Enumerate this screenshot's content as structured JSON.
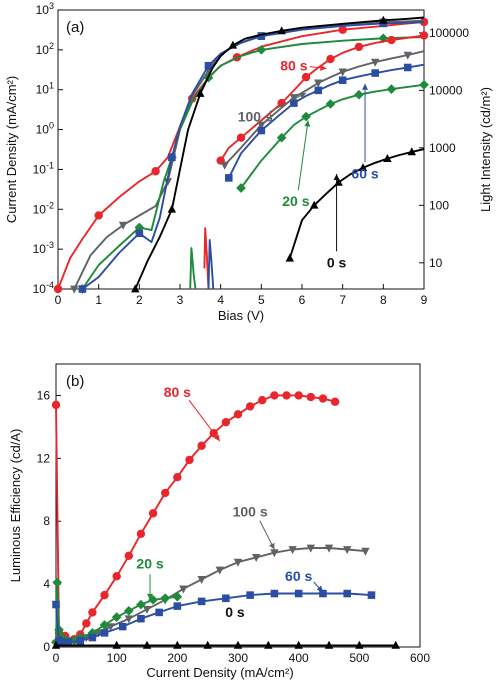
{
  "chart_data": [
    {
      "type": "line",
      "panel_label": "(a)",
      "xlabel": "Bias (V)",
      "ylabel": "Current Density (mA/cm²)",
      "y2label": "Light Intensity (cd/m²)",
      "xlim": [
        0,
        9
      ],
      "ylim": [
        0.0001,
        1000
      ],
      "y2lim": [
        3.5,
        250000
      ],
      "yscale": "log",
      "y2scale": "log",
      "xticks": [
        0,
        1,
        2,
        3,
        4,
        5,
        6,
        7,
        8,
        9
      ],
      "yticks": [
        {
          "v": 0.0001,
          "m": "10",
          "e": "-4"
        },
        {
          "v": 0.001,
          "m": "10",
          "e": "-3"
        },
        {
          "v": 0.01,
          "m": "10",
          "e": "-2"
        },
        {
          "v": 0.1,
          "m": "10",
          "e": "-1"
        },
        {
          "v": 1,
          "m": "10",
          "e": "0"
        },
        {
          "v": 10,
          "m": "10",
          "e": "1"
        },
        {
          "v": 100,
          "m": "10",
          "e": "2"
        },
        {
          "v": 1000,
          "m": "10",
          "e": "3"
        }
      ],
      "y2ticks": [
        {
          "v": 10,
          "label": "10"
        },
        {
          "v": 100,
          "label": "100"
        },
        {
          "v": 1000,
          "label": "1000"
        },
        {
          "v": 10000,
          "label": "10000"
        },
        {
          "v": 100000,
          "label": "100000"
        }
      ],
      "series": [
        {
          "color": "#e8262c",
          "marker": "circle",
          "axis": "y",
          "stride": 3,
          "x": [
            0,
            0.3,
            0.6,
            1.0,
            1.5,
            2.0,
            2.4,
            2.7,
            3.0,
            3.3,
            3.7,
            4.0,
            4.4,
            5.0,
            6.0,
            7.0,
            8.0,
            8.6,
            9.0
          ],
          "y": [
            0.0001,
            0.0006,
            0.0018,
            0.007,
            0.02,
            0.05,
            0.09,
            0.2,
            1.2,
            6,
            20,
            40,
            65,
            120,
            220,
            320,
            400,
            460,
            500
          ]
        },
        {
          "color": "#606366",
          "marker": "triangle-down",
          "axis": "y",
          "stride": 3,
          "x": [
            0.4,
            0.8,
            1.2,
            1.6,
            2.0,
            2.4,
            2.7,
            3.0,
            3.3,
            3.7,
            4.0,
            4.5,
            5.0,
            6.0,
            7.0,
            8.0,
            8.6,
            9.0
          ],
          "y": [
            0.0001,
            0.0007,
            0.002,
            0.004,
            0.007,
            0.012,
            0.05,
            1.0,
            7,
            30,
            80,
            150,
            230,
            340,
            430,
            500,
            520,
            540
          ]
        },
        {
          "color": "#1e8a3a",
          "marker": "diamond",
          "axis": "y",
          "stride": 3,
          "x": [
            0.6,
            1.0,
            1.5,
            2.0,
            2.3,
            2.6,
            2.8,
            3.0,
            3.3,
            3.7,
            4.0,
            4.5,
            5.0,
            6.0,
            7.0,
            8.0,
            9.0
          ],
          "y": [
            0.0001,
            0.0004,
            0.0012,
            0.0035,
            0.003,
            0.05,
            0.2,
            1.0,
            5,
            20,
            40,
            70,
            100,
            140,
            170,
            195,
            210
          ]
        },
        {
          "color": "#2b4ea2",
          "marker": "square",
          "axis": "y",
          "stride": 3,
          "x": [
            0.6,
            1.0,
            1.5,
            2.0,
            2.3,
            2.5,
            2.8,
            3.0,
            3.3,
            3.7,
            4.0,
            4.5,
            5.0,
            6.0,
            7.0,
            8.0,
            8.6,
            9.0
          ],
          "y": [
            0.0001,
            0.0002,
            0.0008,
            0.0025,
            0.0015,
            0.006,
            0.2,
            1.2,
            8,
            40,
            80,
            150,
            220,
            320,
            400,
            460,
            480,
            500
          ]
        },
        {
          "color": "#000000",
          "marker": "triangle-up",
          "axis": "y",
          "stride": 3,
          "x": [
            1.9,
            2.2,
            2.5,
            2.8,
            3.0,
            3.2,
            3.5,
            3.8,
            4.0,
            4.3,
            4.6,
            5.0,
            5.5,
            6.0,
            7.0,
            8.0,
            8.6,
            9.0
          ],
          "y": [
            0.0001,
            0.0005,
            0.002,
            0.01,
            0.1,
            1.0,
            8,
            35,
            70,
            130,
            190,
            240,
            300,
            360,
            450,
            550,
            600,
            650
          ]
        },
        {
          "color": "#e8262c",
          "marker": "circle",
          "axis": "y2",
          "stride": 2,
          "x": [
            4.0,
            4.2,
            4.5,
            5.0,
            5.5,
            5.8,
            6.1,
            6.4,
            6.7,
            7.0,
            7.4,
            7.8,
            8.2,
            8.6,
            9.0
          ],
          "y": [
            600,
            1000,
            1500,
            3000,
            6000,
            10000,
            17000,
            25000,
            35000,
            45000,
            57000,
            67000,
            75000,
            82000,
            90000
          ]
        },
        {
          "color": "#606366",
          "marker": "triangle-down",
          "axis": "y2",
          "stride": 2,
          "x": [
            4.1,
            4.5,
            5.0,
            5.5,
            5.8,
            6.1,
            6.4,
            6.7,
            7.0,
            7.4,
            7.8,
            8.2,
            8.6,
            9.0
          ],
          "y": [
            500,
            1000,
            2500,
            5000,
            7500,
            10000,
            13500,
            17000,
            21000,
            26000,
            31000,
            36000,
            41000,
            48000
          ]
        },
        {
          "color": "#2b4ea2",
          "marker": "square",
          "axis": "y2",
          "stride": 2,
          "x": [
            4.2,
            4.5,
            5.0,
            5.5,
            5.8,
            6.1,
            6.4,
            6.7,
            7.0,
            7.4,
            7.8,
            8.2,
            8.6,
            9.0
          ],
          "y": [
            300,
            800,
            2000,
            4000,
            6000,
            8000,
            10000,
            12500,
            15000,
            17500,
            20000,
            22500,
            25000,
            28000
          ]
        },
        {
          "color": "#1e8a3a",
          "marker": "diamond",
          "axis": "y2",
          "stride": 2,
          "x": [
            4.5,
            5.0,
            5.5,
            5.8,
            6.1,
            6.4,
            6.7,
            7.0,
            7.4,
            7.8,
            8.2,
            8.6,
            9.0
          ],
          "y": [
            200,
            600,
            1500,
            2500,
            3500,
            4500,
            5800,
            7000,
            8400,
            9500,
            10500,
            11500,
            12500
          ]
        },
        {
          "color": "#000000",
          "marker": "triangle-up",
          "axis": "y2",
          "stride": 2,
          "x": [
            5.7,
            6.0,
            6.3,
            6.6,
            6.9,
            7.2,
            7.5,
            7.8,
            8.1,
            8.4,
            8.7,
            9.0
          ],
          "y": [
            12,
            55,
            100,
            160,
            250,
            350,
            450,
            550,
            650,
            750,
            850,
            950
          ]
        },
        {
          "color": "#e8262c",
          "marker": "none",
          "axis": "y2",
          "stride": 1,
          "x": [
            3.6,
            3.62,
            3.66,
            3.7
          ],
          "y": [
            8,
            40,
            14,
            3.5
          ]
        },
        {
          "color": "#1e8a3a",
          "marker": "none",
          "axis": "y2",
          "stride": 1,
          "x": [
            3.25,
            3.28,
            3.34,
            3.38
          ],
          "y": [
            3.5,
            18,
            6,
            3.5
          ]
        },
        {
          "color": "#2b4ea2",
          "marker": "none",
          "axis": "y2",
          "stride": 1,
          "x": [
            3.7,
            3.73,
            3.78,
            3.82
          ],
          "y": [
            3.5,
            25,
            9,
            3.5
          ]
        }
      ],
      "annotations": [
        {
          "text": "80 s",
          "color": "#e8262c",
          "tx": 5.8,
          "ty": 30,
          "ax": 6.6,
          "ay": 24000
        },
        {
          "text": "100 s",
          "color": "#606366",
          "tx": 4.85,
          "ty": 1.6,
          "ax": 6.1,
          "ay": 9000
        },
        {
          "text": "60 s",
          "color": "#2b4ea2",
          "tx": 7.55,
          "ty": 0.06,
          "ax": 7.55,
          "ay": 13000
        },
        {
          "text": "20 s",
          "color": "#1e8a3a",
          "tx": 5.85,
          "ty": 0.012,
          "ax": 6.15,
          "ay": 3000
        },
        {
          "text": "0 s",
          "color": "#111111",
          "tx": 6.85,
          "ty": 0.00035,
          "ax": 6.85,
          "ay": 350
        }
      ]
    },
    {
      "type": "line",
      "panel_label": "(b)",
      "xlabel": "Current Density (mA/cm²)",
      "ylabel": "Luminous Efficiency (cd/A)",
      "xlim": [
        0,
        600
      ],
      "ylim": [
        0,
        18
      ],
      "yscale": "linear",
      "xticks": [
        0,
        100,
        200,
        300,
        400,
        500,
        600
      ],
      "yticks": [
        0,
        4,
        8,
        12,
        16
      ],
      "series": [
        {
          "color": "#e8262c",
          "marker": "circle",
          "x": [
            0,
            5,
            10,
            15,
            20,
            30,
            40,
            50,
            60,
            80,
            100,
            120,
            140,
            160,
            180,
            200,
            220,
            240,
            260,
            280,
            300,
            320,
            340,
            360,
            380,
            400,
            420,
            440,
            460
          ],
          "y": [
            15.4,
            0.9,
            0.5,
            0.7,
            0.4,
            0.5,
            0.8,
            1.5,
            2.2,
            3.3,
            4.5,
            5.8,
            7.2,
            8.5,
            9.8,
            10.8,
            11.9,
            12.8,
            13.6,
            14.3,
            14.8,
            15.3,
            15.7,
            16.0,
            16.0,
            16.0,
            15.9,
            15.8,
            15.6
          ]
        },
        {
          "color": "#606366",
          "marker": "triangle-down",
          "x": [
            0,
            10,
            30,
            50,
            70,
            90,
            120,
            150,
            180,
            210,
            240,
            270,
            300,
            330,
            360,
            390,
            420,
            450,
            480,
            510
          ],
          "y": [
            0.2,
            0.3,
            0.4,
            0.6,
            0.9,
            1.3,
            1.8,
            2.4,
            3.0,
            3.7,
            4.3,
            4.9,
            5.4,
            5.7,
            6.0,
            6.2,
            6.3,
            6.3,
            6.2,
            6.1
          ]
        },
        {
          "color": "#1e8a3a",
          "marker": "diamond",
          "x": [
            0,
            2,
            5,
            10,
            20,
            30,
            40,
            60,
            80,
            100,
            120,
            140,
            160,
            180,
            200
          ],
          "y": [
            0.3,
            4.1,
            1.1,
            0.6,
            0.4,
            0.4,
            0.6,
            0.9,
            1.4,
            1.9,
            2.3,
            2.7,
            3.0,
            3.1,
            3.2
          ]
        },
        {
          "color": "#2b4ea2",
          "marker": "square",
          "x": [
            0,
            5,
            10,
            20,
            40,
            60,
            80,
            110,
            140,
            170,
            200,
            240,
            280,
            320,
            360,
            400,
            440,
            480,
            520
          ],
          "y": [
            2.7,
            0.4,
            0.3,
            0.3,
            0.4,
            0.6,
            0.9,
            1.3,
            1.8,
            2.2,
            2.6,
            2.9,
            3.1,
            3.3,
            3.4,
            3.4,
            3.4,
            3.4,
            3.3
          ]
        },
        {
          "color": "#000000",
          "marker": "triangle-up",
          "x": [
            0,
            100,
            150,
            200,
            250,
            300,
            350,
            400,
            450,
            500,
            560
          ],
          "y": [
            0.1,
            0.1,
            0.1,
            0.1,
            0.1,
            0.1,
            0.1,
            0.1,
            0.1,
            0.1,
            0.1
          ]
        }
      ],
      "annotations": [
        {
          "text": "80 s",
          "color": "#e8262c",
          "tx": 200,
          "ty": 15.9,
          "ax": 270,
          "ay": 13.1
        },
        {
          "text": "100 s",
          "color": "#606366",
          "tx": 320,
          "ty": 8.3,
          "ax": 360,
          "ay": 6.2
        },
        {
          "text": "20 s",
          "color": "#1e8a3a",
          "tx": 155,
          "ty": 5.0,
          "ax": 155,
          "ay": 3.0
        },
        {
          "text": "60 s",
          "color": "#2b4ea2",
          "tx": 400,
          "ty": 4.2,
          "ax": 440,
          "ay": 3.5
        },
        {
          "text": "0 s",
          "color": "#111111",
          "tx": 295,
          "ty": 1.9,
          "ax": 0,
          "ay": 0
        }
      ]
    }
  ]
}
